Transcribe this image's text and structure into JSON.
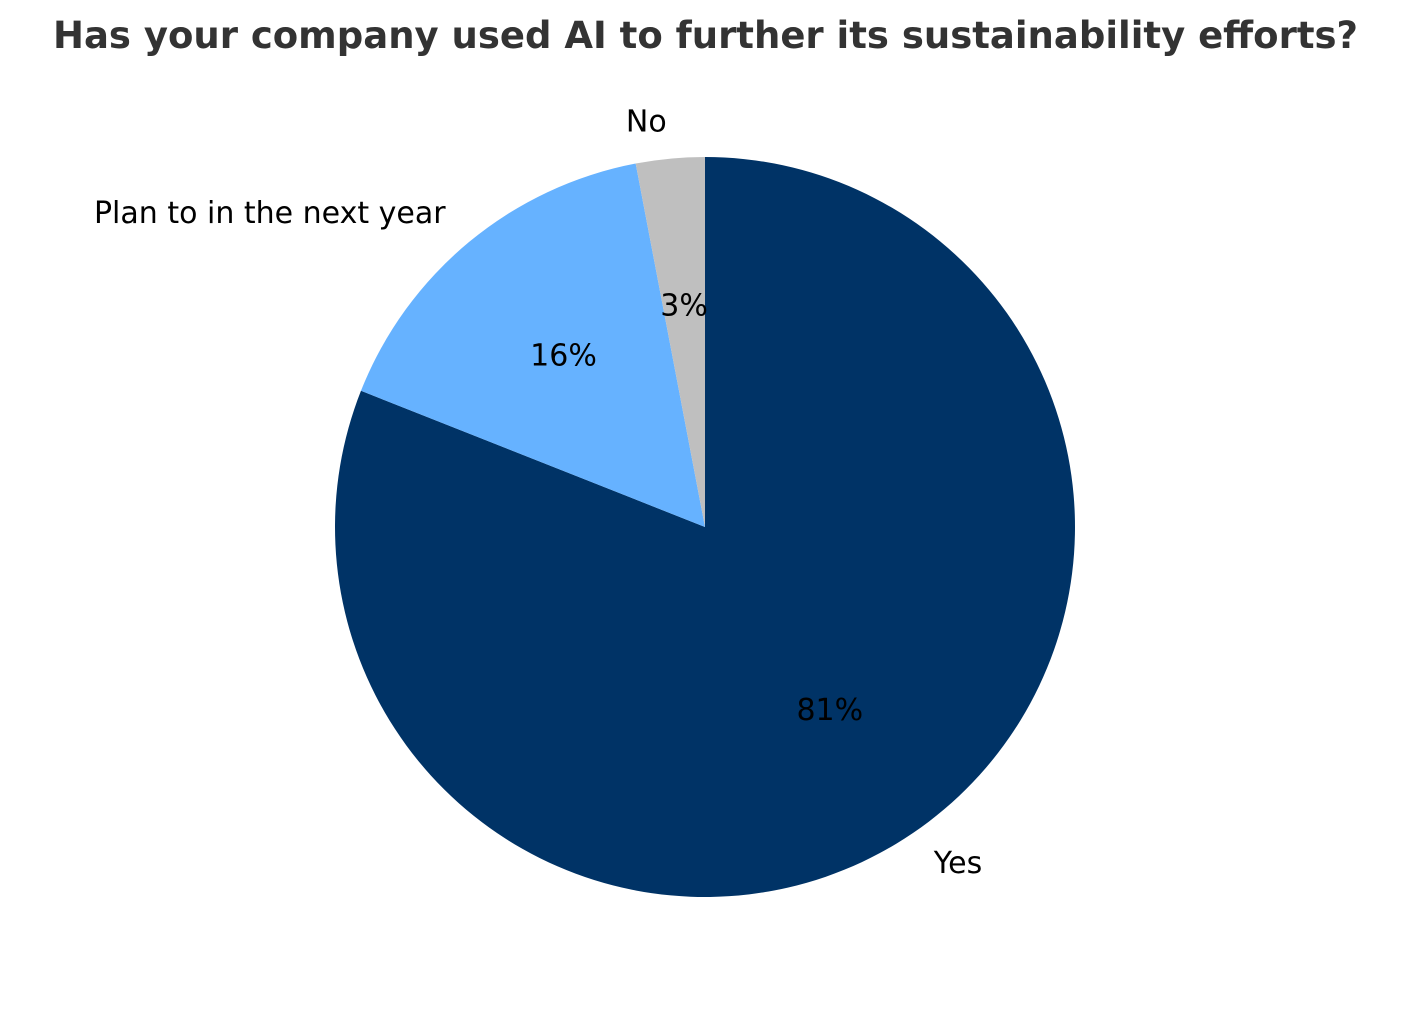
{
  "chart_data": {
    "type": "pie",
    "title": "Has your company used AI to further its sustainability efforts?",
    "start_angle_deg": 90,
    "direction": "clockwise",
    "slices": [
      {
        "label": "Yes",
        "value": 81,
        "pct_label": "81%",
        "color": "#003366"
      },
      {
        "label": "Plan to in the next year",
        "value": 16,
        "pct_label": "16%",
        "color": "#66b2ff"
      },
      {
        "label": "No",
        "value": 3,
        "pct_label": "3%",
        "color": "#bfbfbf"
      }
    ]
  }
}
